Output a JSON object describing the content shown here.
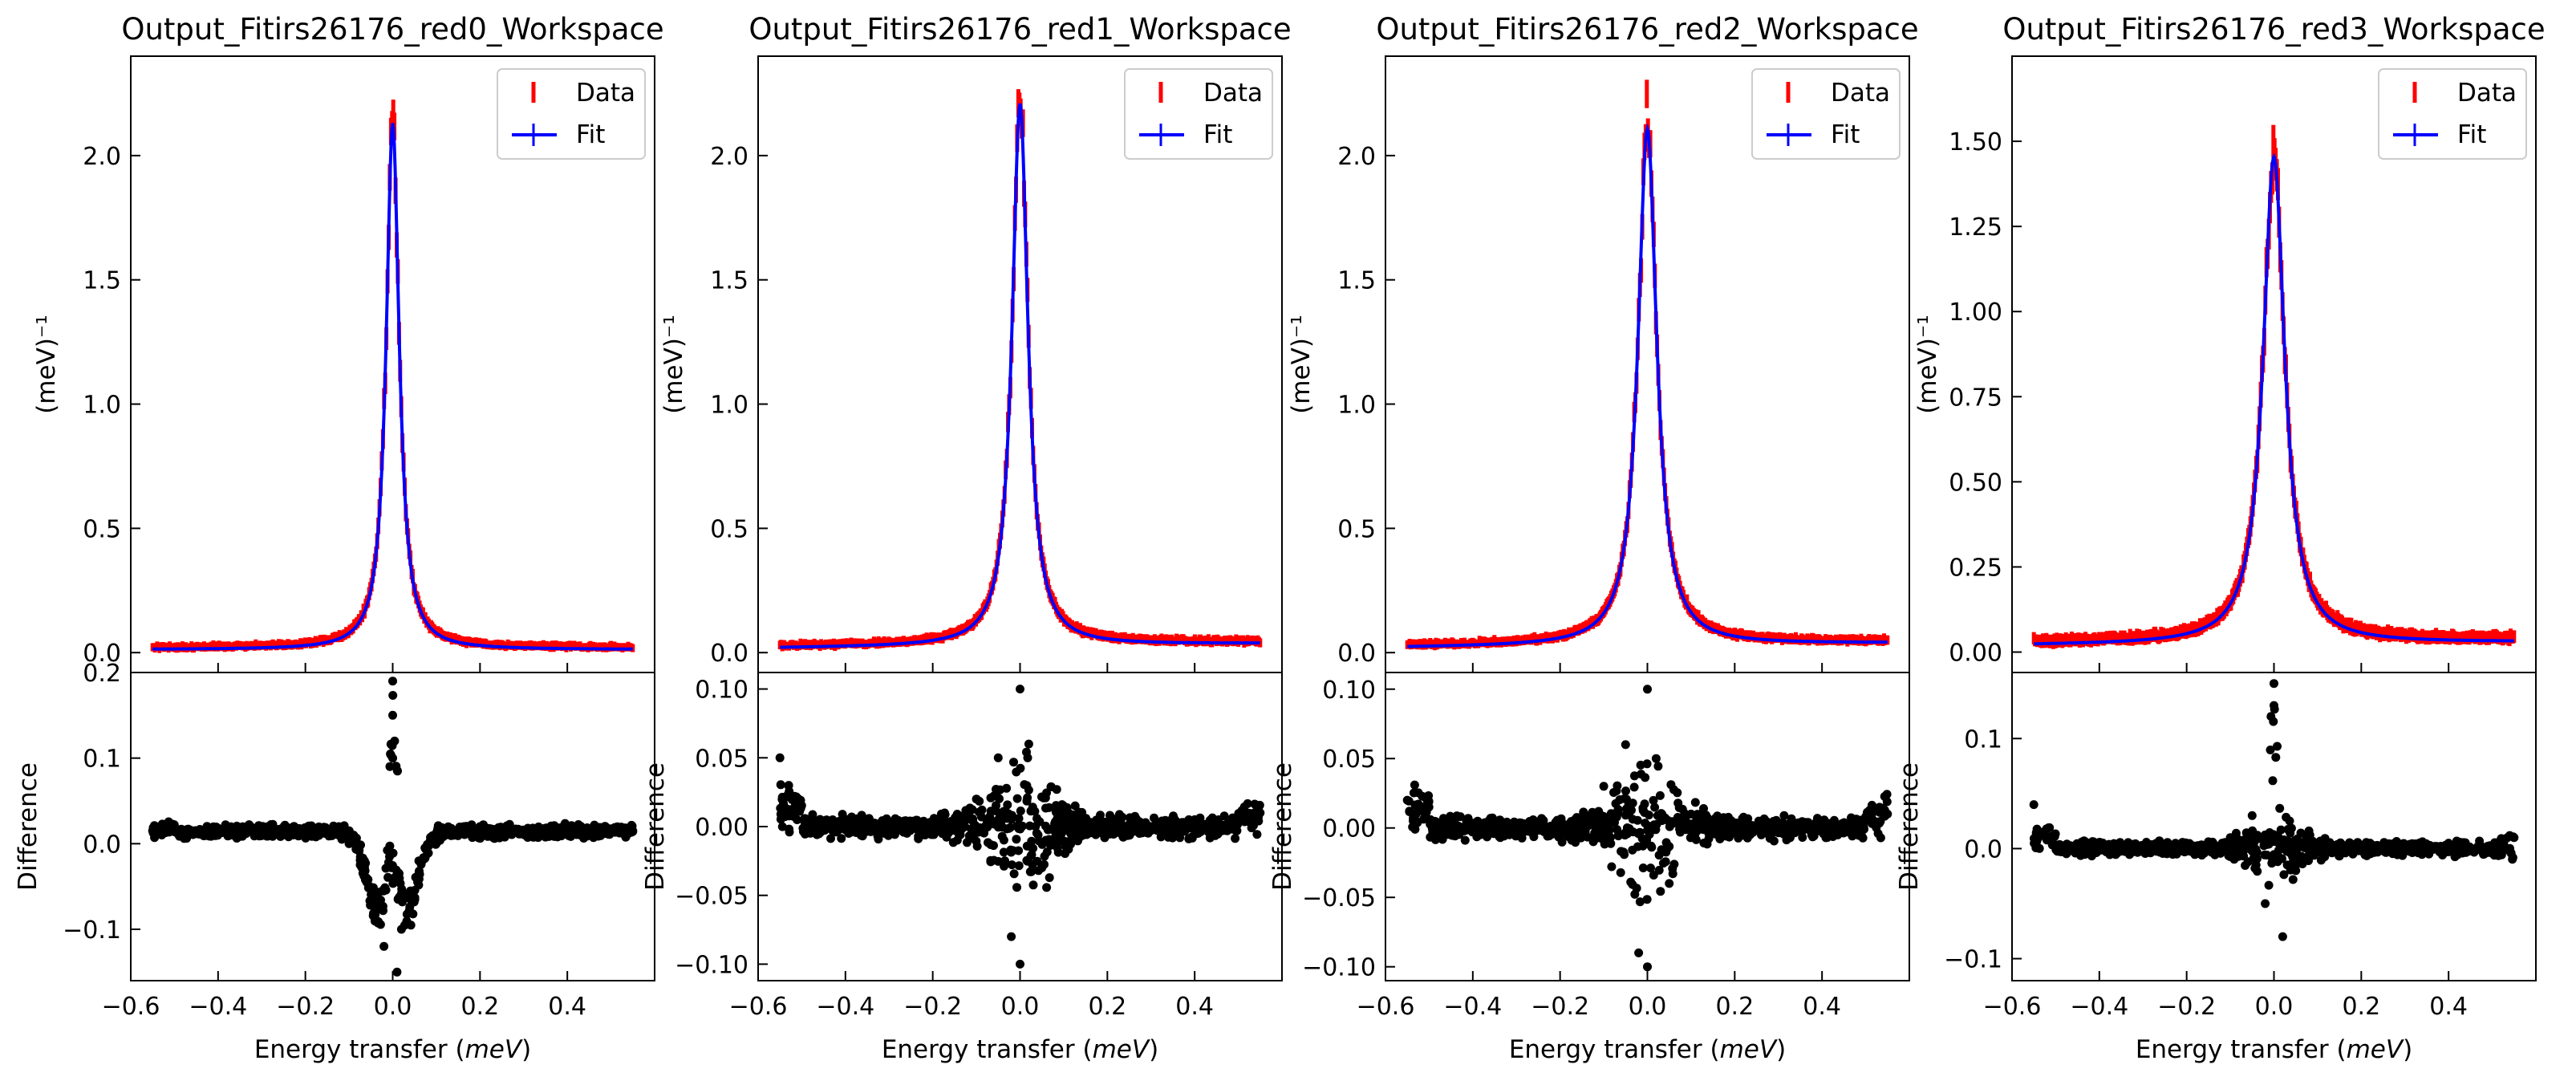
{
  "chart_data": [
    {
      "type": "line",
      "title": "Output_Fitirs26176_red0_Workspace",
      "xlabel": "Energy transfer",
      "xunit": "meV",
      "ylabel": "(meV)⁻¹",
      "xlim": [
        -0.6,
        0.6
      ],
      "xticks": [
        -0.6,
        -0.4,
        -0.2,
        0.0,
        0.2,
        0.4
      ],
      "ylim": [
        -0.08,
        2.4
      ],
      "yticks": [
        0.0,
        0.5,
        1.0,
        1.5,
        2.0
      ],
      "ytick_format": 1,
      "peak": 2.13,
      "baseline": 0.012,
      "hwhm": 0.018,
      "bg_slope": 0.0,
      "series": [
        {
          "name": "Data",
          "style": "errorbar",
          "color": "#ff0000",
          "x": [
            -0.55,
            -0.5,
            -0.4,
            -0.3,
            -0.2,
            -0.1,
            -0.05,
            -0.02,
            0.0,
            0.02,
            0.05,
            0.1,
            0.2,
            0.3,
            0.4,
            0.5,
            0.55
          ],
          "y": [
            0.02,
            0.02,
            0.025,
            0.035,
            0.06,
            0.12,
            0.3,
            0.95,
            2.15,
            0.95,
            0.3,
            0.12,
            0.06,
            0.035,
            0.025,
            0.02,
            0.02
          ]
        },
        {
          "name": "Fit",
          "style": "line",
          "color": "#0000ff",
          "x": [
            -0.55,
            -0.5,
            -0.4,
            -0.3,
            -0.2,
            -0.1,
            -0.05,
            -0.02,
            0.0,
            0.02,
            0.05,
            0.1,
            0.2,
            0.3,
            0.4,
            0.5,
            0.55
          ],
          "y": [
            0.012,
            0.014,
            0.018,
            0.022,
            0.034,
            0.078,
            0.3,
            1.2,
            2.13,
            1.2,
            0.3,
            0.078,
            0.034,
            0.022,
            0.018,
            0.014,
            0.012
          ]
        }
      ],
      "legend": {
        "position": "upper right",
        "entries": [
          "Data",
          "Fit"
        ]
      },
      "diff": {
        "ylabel": "Difference",
        "ylim": [
          -0.16,
          0.2
        ],
        "yticks": [
          -0.1,
          0.0,
          0.1,
          0.2
        ],
        "ytick_format": 1,
        "type": "scatter",
        "color": "#000000",
        "profile": "dip",
        "x": [
          -0.55,
          -0.4,
          -0.2,
          -0.1,
          -0.06,
          -0.04,
          -0.02,
          0.0,
          0.0,
          0.0,
          0.01,
          0.02,
          0.04,
          0.06,
          0.1,
          0.2,
          0.4,
          0.55
        ],
        "y": [
          0.015,
          0.015,
          0.015,
          0.0,
          -0.04,
          -0.08,
          -0.12,
          0.19,
          0.15,
          0.1,
          -0.15,
          -0.1,
          -0.06,
          -0.02,
          0.0,
          0.02,
          0.015,
          0.015
        ]
      }
    },
    {
      "type": "line",
      "title": "Output_Fitirs26176_red1_Workspace",
      "xlabel": "Energy transfer",
      "xunit": "meV",
      "ylabel": "(meV)⁻¹",
      "xlim": [
        -0.6,
        0.6
      ],
      "xticks": [
        -0.6,
        -0.4,
        -0.2,
        0.0,
        0.2,
        0.4
      ],
      "ylim": [
        -0.08,
        2.4
      ],
      "yticks": [
        0.0,
        0.5,
        1.0,
        1.5,
        2.0
      ],
      "ytick_format": 1,
      "peak": 2.2,
      "baseline": 0.018,
      "hwhm": 0.022,
      "bg_slope": 0.02,
      "series": [
        {
          "name": "Data",
          "style": "errorbar",
          "color": "#ff0000",
          "x": [
            -0.55,
            -0.5,
            -0.4,
            -0.3,
            -0.2,
            -0.1,
            -0.05,
            -0.02,
            0.0,
            0.02,
            0.05,
            0.1,
            0.2,
            0.3,
            0.4,
            0.5,
            0.55
          ],
          "y": [
            0.05,
            0.03,
            0.035,
            0.045,
            0.07,
            0.14,
            0.35,
            1.05,
            2.25,
            1.05,
            0.35,
            0.14,
            0.07,
            0.045,
            0.035,
            0.03,
            0.03
          ]
        },
        {
          "name": "Fit",
          "style": "line",
          "color": "#0000ff",
          "x": [
            -0.55,
            -0.5,
            -0.4,
            -0.3,
            -0.2,
            -0.1,
            -0.05,
            -0.02,
            0.0,
            0.02,
            0.05,
            0.1,
            0.2,
            0.3,
            0.4,
            0.5,
            0.55
          ],
          "y": [
            0.02,
            0.022,
            0.027,
            0.033,
            0.045,
            0.1,
            0.36,
            1.3,
            2.2,
            1.3,
            0.36,
            0.1,
            0.045,
            0.033,
            0.027,
            0.022,
            0.02
          ]
        }
      ],
      "legend": {
        "position": "upper right",
        "entries": [
          "Data",
          "Fit"
        ]
      },
      "diff": {
        "ylabel": "Difference",
        "ylim": [
          -0.112,
          0.112
        ],
        "yticks": [
          -0.1,
          -0.05,
          0.0,
          0.05,
          0.1
        ],
        "ytick_format": 2,
        "type": "scatter",
        "color": "#000000",
        "profile": "spread",
        "x": [
          -0.55,
          -0.53,
          -0.4,
          -0.2,
          -0.1,
          -0.05,
          -0.02,
          0.0,
          0.0,
          0.02,
          0.05,
          0.1,
          0.2,
          0.4,
          0.55
        ],
        "y": [
          0.05,
          0.03,
          0.005,
          0.0,
          0.02,
          0.05,
          -0.08,
          0.1,
          -0.1,
          0.06,
          -0.03,
          0.01,
          0.0,
          0.005,
          0.01
        ]
      }
    },
    {
      "type": "line",
      "title": "Output_Fitirs26176_red2_Workspace",
      "xlabel": "Energy transfer",
      "xunit": "meV",
      "ylabel": "(meV)⁻¹",
      "xlim": [
        -0.6,
        0.6
      ],
      "xticks": [
        -0.6,
        -0.4,
        -0.2,
        0.0,
        0.2,
        0.4
      ],
      "ylim": [
        -0.08,
        2.4
      ],
      "yticks": [
        0.0,
        0.5,
        1.0,
        1.5,
        2.0
      ],
      "ytick_format": 1,
      "peak": 2.1,
      "baseline": 0.02,
      "hwhm": 0.026,
      "bg_slope": 0.02,
      "series": [
        {
          "name": "Data",
          "style": "errorbar",
          "color": "#ff0000",
          "x": [
            -0.55,
            -0.5,
            -0.4,
            -0.3,
            -0.2,
            -0.1,
            -0.05,
            -0.02,
            0.0,
            0.02,
            0.05,
            0.1,
            0.2,
            0.3,
            0.4,
            0.5,
            0.55
          ],
          "y": [
            0.04,
            0.03,
            0.04,
            0.05,
            0.08,
            0.16,
            0.4,
            1.1,
            2.15,
            1.1,
            0.4,
            0.16,
            0.08,
            0.05,
            0.04,
            0.035,
            0.035
          ]
        },
        {
          "name": "Fit",
          "style": "line",
          "color": "#0000ff",
          "x": [
            -0.55,
            -0.5,
            -0.4,
            -0.3,
            -0.2,
            -0.1,
            -0.05,
            -0.02,
            0.0,
            0.02,
            0.05,
            0.1,
            0.2,
            0.3,
            0.4,
            0.5,
            0.55
          ],
          "y": [
            0.022,
            0.024,
            0.029,
            0.036,
            0.05,
            0.12,
            0.42,
            1.35,
            2.1,
            1.35,
            0.42,
            0.12,
            0.05,
            0.036,
            0.029,
            0.024,
            0.022
          ]
        }
      ],
      "legend": {
        "position": "upper right",
        "entries": [
          "Data",
          "Fit"
        ]
      },
      "diff": {
        "ylabel": "Difference",
        "ylim": [
          -0.11,
          0.112
        ],
        "yticks": [
          -0.1,
          -0.05,
          0.0,
          0.05,
          0.1
        ],
        "ytick_format": 2,
        "type": "scatter",
        "color": "#000000",
        "profile": "spread",
        "x": [
          -0.55,
          -0.4,
          -0.2,
          -0.1,
          -0.05,
          -0.02,
          0.0,
          0.0,
          0.02,
          0.05,
          0.1,
          0.2,
          0.4,
          0.55
        ],
        "y": [
          0.02,
          0.0,
          0.0,
          0.03,
          0.06,
          -0.09,
          0.1,
          -0.1,
          0.05,
          -0.04,
          0.01,
          0.0,
          0.005,
          0.01
        ]
      }
    },
    {
      "type": "line",
      "title": "Output_Fitirs26176_red3_Workspace",
      "xlabel": "Energy transfer",
      "xunit": "meV",
      "ylabel": "(meV)⁻¹",
      "xlim": [
        -0.6,
        0.6
      ],
      "xticks": [
        -0.6,
        -0.4,
        -0.2,
        0.0,
        0.2,
        0.4
      ],
      "ylim": [
        -0.06,
        1.75
      ],
      "yticks": [
        0.0,
        0.25,
        0.5,
        0.75,
        1.0,
        1.25,
        1.5
      ],
      "ytick_format": 2,
      "peak": 1.45,
      "baseline": 0.02,
      "hwhm": 0.03,
      "bg_slope": 0.01,
      "series": [
        {
          "name": "Data",
          "style": "errorbar",
          "color": "#ff0000",
          "x": [
            -0.55,
            -0.5,
            -0.4,
            -0.3,
            -0.2,
            -0.1,
            -0.05,
            -0.02,
            0.0,
            0.02,
            0.05,
            0.1,
            0.2,
            0.3,
            0.4,
            0.5,
            0.55
          ],
          "y": [
            0.05,
            0.03,
            0.04,
            0.05,
            0.08,
            0.15,
            0.35,
            0.9,
            1.55,
            0.9,
            0.35,
            0.15,
            0.08,
            0.05,
            0.04,
            0.035,
            0.04
          ]
        },
        {
          "name": "Fit",
          "style": "line",
          "color": "#0000ff",
          "x": [
            -0.55,
            -0.5,
            -0.4,
            -0.3,
            -0.2,
            -0.1,
            -0.05,
            -0.02,
            0.0,
            0.02,
            0.05,
            0.1,
            0.2,
            0.3,
            0.4,
            0.5,
            0.55
          ],
          "y": [
            0.022,
            0.024,
            0.029,
            0.036,
            0.05,
            0.11,
            0.38,
            1.0,
            1.45,
            1.0,
            0.38,
            0.11,
            0.05,
            0.036,
            0.029,
            0.024,
            0.022
          ]
        }
      ],
      "legend": {
        "position": "upper right",
        "entries": [
          "Data",
          "Fit"
        ]
      },
      "diff": {
        "ylabel": "Difference",
        "ylim": [
          -0.12,
          0.16
        ],
        "yticks": [
          -0.1,
          0.0,
          0.1
        ],
        "ytick_format": 1,
        "type": "scatter",
        "color": "#000000",
        "profile": "spike",
        "x": [
          -0.55,
          -0.4,
          -0.2,
          -0.1,
          -0.05,
          -0.02,
          0.0,
          0.0,
          0.02,
          0.05,
          0.1,
          0.2,
          0.4,
          0.55
        ],
        "y": [
          0.04,
          0.0,
          0.0,
          0.01,
          0.03,
          -0.05,
          0.15,
          0.13,
          -0.08,
          -0.02,
          0.0,
          0.0,
          0.005,
          0.01
        ]
      }
    }
  ]
}
